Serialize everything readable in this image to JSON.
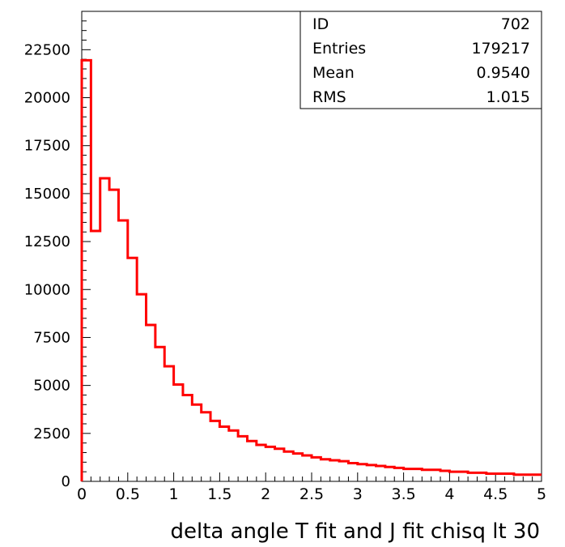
{
  "chart_data": {
    "type": "bar",
    "style": "step-histogram",
    "xlabel": "delta angle T fit and J fit chisq lt 30",
    "ylabel": "",
    "title": "",
    "xlim": [
      0,
      5
    ],
    "ylim": [
      0,
      24500
    ],
    "bin_width": 0.1,
    "x_ticks": [
      "0",
      "0.5",
      "1",
      "1.5",
      "2",
      "2.5",
      "3",
      "3.5",
      "4",
      "4.5",
      "5"
    ],
    "x_tick_values": [
      0,
      0.5,
      1,
      1.5,
      2,
      2.5,
      3,
      3.5,
      4,
      4.5,
      5
    ],
    "y_ticks": [
      "0",
      "2500",
      "5000",
      "7500",
      "10000",
      "12500",
      "15000",
      "17500",
      "20000",
      "22500"
    ],
    "y_tick_values": [
      0,
      2500,
      5000,
      7500,
      10000,
      12500,
      15000,
      17500,
      20000,
      22500
    ],
    "grid": false,
    "legend": "none",
    "line_color": "#ff0000",
    "series": [
      {
        "x": [
          0.0,
          0.1,
          0.2,
          0.3,
          0.4,
          0.5,
          0.6,
          0.7,
          0.8,
          0.9,
          1.0,
          1.1,
          1.2,
          1.3,
          1.4,
          1.5,
          1.6,
          1.7,
          1.8,
          1.9,
          2.0,
          2.1,
          2.2,
          2.3,
          2.4,
          2.5,
          2.6,
          2.7,
          2.8,
          2.9,
          3.0,
          3.1,
          3.2,
          3.3,
          3.4,
          3.5,
          3.6,
          3.7,
          3.8,
          3.9,
          4.0,
          4.1,
          4.2,
          4.3,
          4.4,
          4.5,
          4.6,
          4.7,
          4.8,
          4.9
        ],
        "values": [
          21950,
          13050,
          15800,
          15200,
          13600,
          11650,
          9750,
          8150,
          7000,
          6000,
          5050,
          4500,
          4000,
          3600,
          3150,
          2850,
          2650,
          2350,
          2100,
          1900,
          1800,
          1700,
          1550,
          1450,
          1350,
          1250,
          1150,
          1100,
          1050,
          950,
          900,
          850,
          800,
          750,
          700,
          650,
          650,
          600,
          600,
          550,
          500,
          500,
          450,
          450,
          400,
          400,
          400,
          350,
          350,
          350
        ]
      }
    ]
  },
  "stats": {
    "rows": [
      {
        "label": "ID",
        "value": "702"
      },
      {
        "label": "Entries",
        "value": "179217"
      },
      {
        "label": "Mean",
        "value": "0.9540"
      },
      {
        "label": "RMS",
        "value": "1.015"
      }
    ]
  }
}
